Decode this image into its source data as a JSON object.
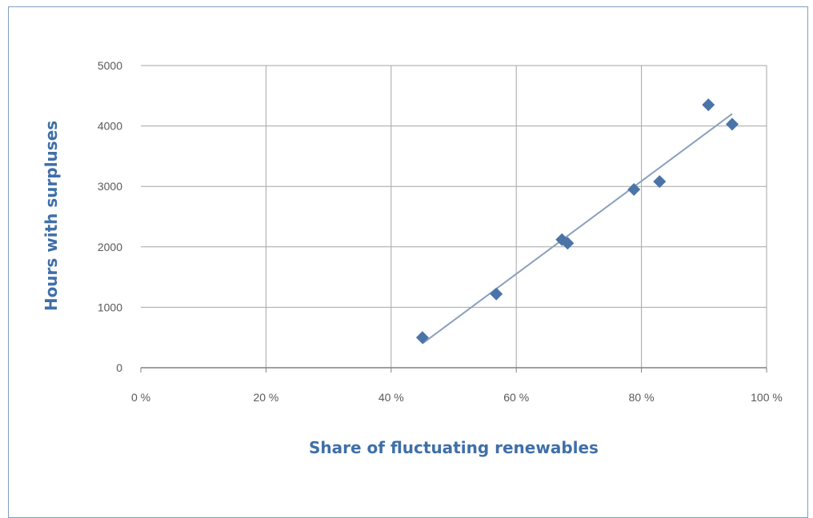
{
  "chart_data": {
    "type": "scatter",
    "xlabel": "Share of fluctuating renewables",
    "ylabel": "Hours with surpluses",
    "xlim": [
      0,
      100
    ],
    "ylim": [
      0,
      5000
    ],
    "x_ticks": [
      0,
      20,
      40,
      60,
      80,
      100
    ],
    "x_tick_labels": [
      "0 %",
      "20 %",
      "40 %",
      "60 %",
      "80 %",
      "100 %"
    ],
    "y_ticks": [
      0,
      1000,
      2000,
      3000,
      4000,
      5000
    ],
    "y_tick_labels": [
      "0",
      "1000",
      "2000",
      "3000",
      "4000",
      "5000"
    ],
    "grid": true,
    "series": [
      {
        "x": [
          45,
          56.8,
          67.3,
          68.2,
          78.8,
          82.9,
          90.7,
          94.5
        ],
        "y": [
          500,
          1220,
          2120,
          2060,
          2950,
          3080,
          4350,
          4030
        ]
      }
    ],
    "trendline": {
      "x": [
        45,
        94.5
      ],
      "y": [
        400,
        4200
      ]
    },
    "colors": {
      "marker": "#4a74a8",
      "trendline": "#8aa0bd",
      "grid": "#a6a6a6",
      "axis_title": "#3f6fa8"
    }
  }
}
